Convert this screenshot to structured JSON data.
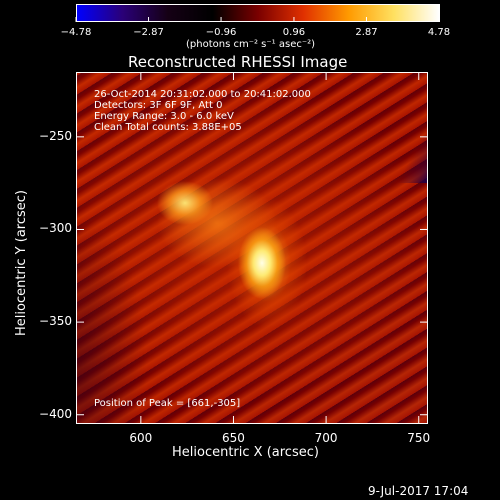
{
  "colorbar": {
    "ticks": [
      -4.78,
      -2.87,
      -0.96,
      0.96,
      2.87,
      4.78
    ],
    "tick_labels": [
      "−4.78",
      "−2.87",
      "−0.96",
      "0.96",
      "2.87",
      "4.78"
    ],
    "units_label": "(photons cm⁻² s⁻¹ asec⁻²)",
    "range": [
      -4.78,
      4.78
    ],
    "colors": [
      "#0000ff",
      "#2a0078",
      "#150015",
      "#000000",
      "#7a0000",
      "#e03000",
      "#ff9a00",
      "#ffe060",
      "#ffffff"
    ]
  },
  "plot": {
    "title": "Reconstructed RHESSI Image",
    "info": {
      "time_range": "26-Oct-2014 20:31:02.000 to 20:41:02.000",
      "detectors": "Detectors: 3F 6F 9F, Att 0",
      "energy": "Energy Range: 3.0 - 6.0 keV",
      "clean_counts": "Clean     Total counts: 3.88E+05"
    },
    "peak_label": "Position of Peak = [661,-305]",
    "xlabel": "Heliocentric X (arcsec)",
    "ylabel": "Heliocentric Y (arcsec)",
    "xlim": [
      565,
      755
    ],
    "ylim": [
      -405,
      -215
    ],
    "xticks": [
      600,
      650,
      700,
      750
    ],
    "xtick_labels": [
      "600",
      "650",
      "700",
      "750"
    ],
    "yticks": [
      -250,
      -300,
      -350,
      -400
    ],
    "ytick_labels": [
      "−250",
      "−300",
      "−350",
      "−400"
    ],
    "peak": [
      661,
      -305
    ]
  },
  "footer": {
    "date": "9-Jul-2017 17:04"
  }
}
